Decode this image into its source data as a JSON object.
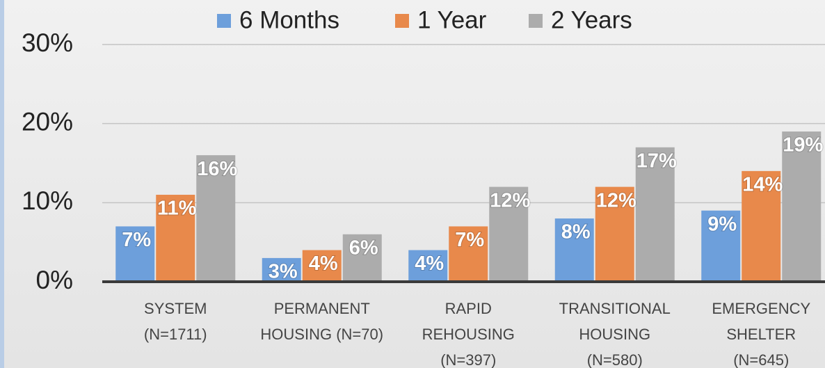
{
  "chart_data": {
    "type": "bar",
    "categories": [
      [
        "SYSTEM",
        "(N=1711)"
      ],
      [
        "PERMANENT",
        "HOUSING (N=70)"
      ],
      [
        "RAPID",
        "REHOUSING",
        "(N=397)"
      ],
      [
        "TRANSITIONAL",
        "HOUSING",
        "(N=580)"
      ],
      [
        "EMERGENCY",
        "SHELTER",
        "(N=645)"
      ]
    ],
    "series": [
      {
        "name": "6 Months",
        "color": "#6d9fdb",
        "values": [
          7,
          3,
          4,
          8,
          9
        ],
        "value_labels": [
          "7%",
          "3%",
          "4%",
          "8%",
          "9%"
        ]
      },
      {
        "name": "1 Year",
        "color": "#e8894b",
        "values": [
          11,
          4,
          7,
          12,
          14
        ],
        "value_labels": [
          "11%",
          "4%",
          "7%",
          "12%",
          "14%"
        ]
      },
      {
        "name": "2 Years",
        "color": "#acacac",
        "values": [
          16,
          6,
          12,
          17,
          19
        ],
        "value_labels": [
          "16%",
          "6%",
          "12%",
          "17%",
          "19%"
        ]
      }
    ],
    "ylim": [
      0,
      30
    ],
    "yticks": [
      {
        "value": 0,
        "label": "0%"
      },
      {
        "value": 10,
        "label": "10%"
      },
      {
        "value": 20,
        "label": "20%"
      },
      {
        "value": 30,
        "label": "30%"
      }
    ],
    "grid": true,
    "legend": "top"
  }
}
